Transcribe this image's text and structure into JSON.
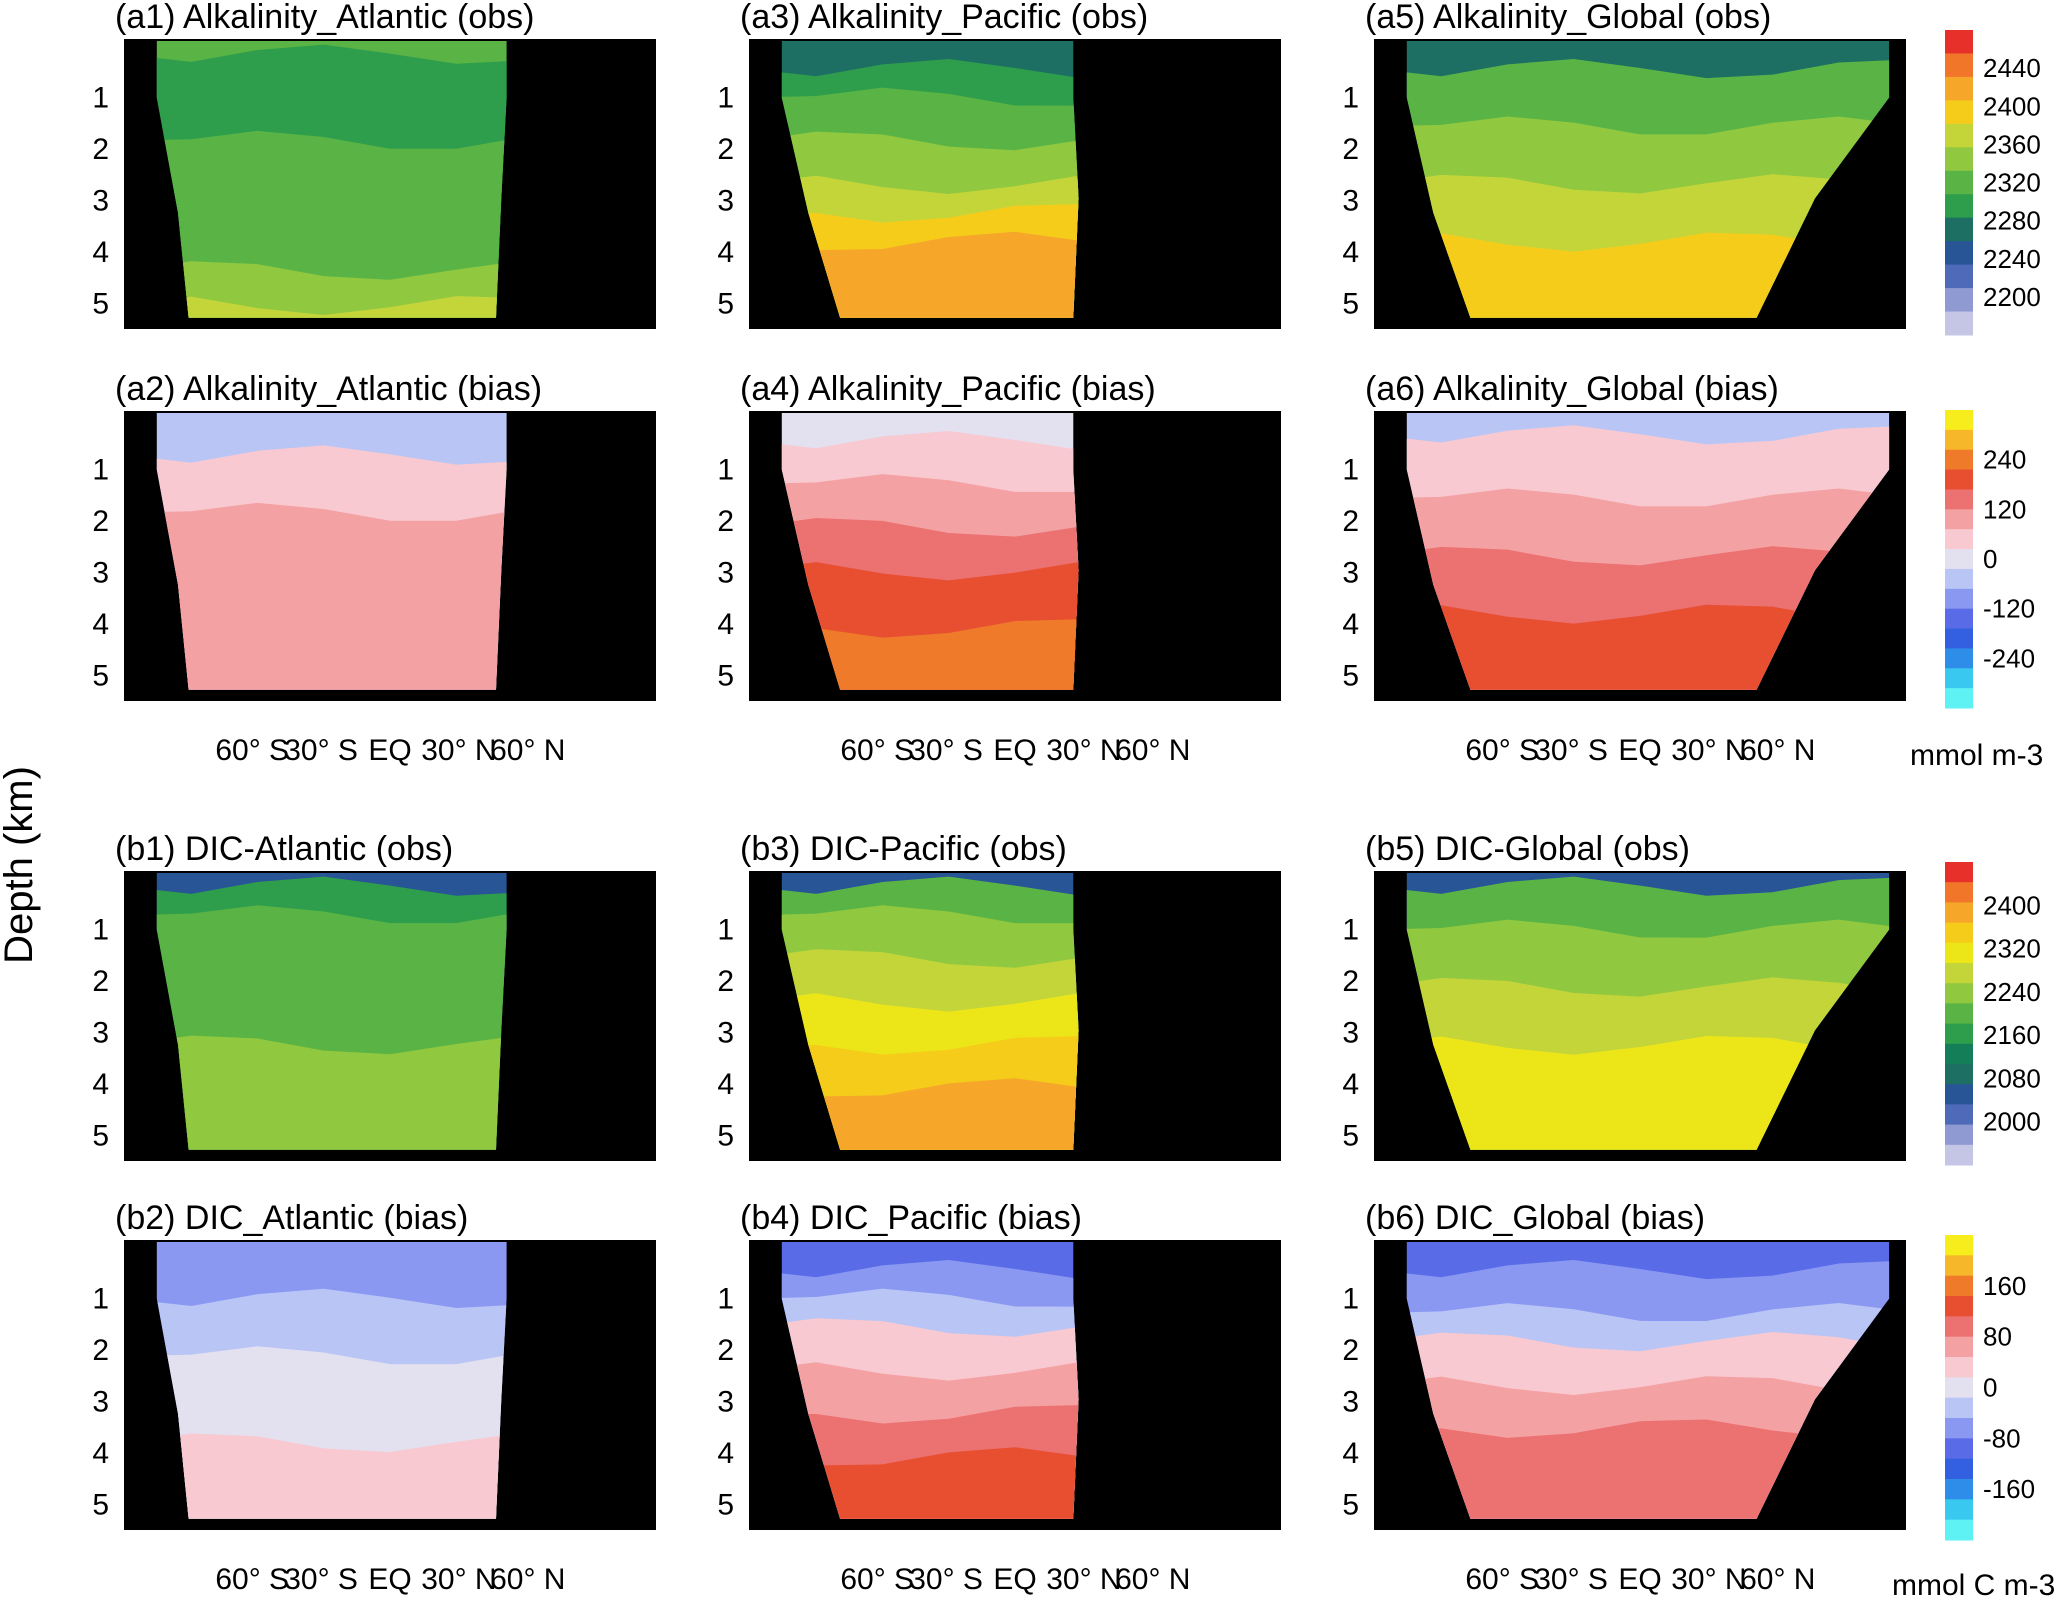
{
  "figure": {
    "ylabel": "Depth (km)",
    "depth_ticks": [
      "1",
      "2",
      "3",
      "4",
      "5"
    ],
    "lat_ticks": [
      "60° S",
      "30° S",
      "EQ",
      "30° N",
      "60° N"
    ]
  },
  "colorbars": {
    "alk_obs": {
      "ticks": [
        2440,
        2400,
        2360,
        2320,
        2280,
        2240,
        2200
      ],
      "colors": [
        "#e8302a",
        "#f2762a",
        "#f6a72a",
        "#f6cc1b",
        "#c4d53a",
        "#90c840",
        "#5ab445",
        "#2e9e4c",
        "#1d6f63",
        "#275596",
        "#4f6ab8",
        "#8f9ad2",
        "#c5c6e6"
      ]
    },
    "alk_bias": {
      "ticks": [
        240,
        120,
        0,
        -120,
        -240
      ],
      "colors": [
        "#f7ec1c",
        "#f6b72a",
        "#ee7a2a",
        "#e74f30",
        "#ec7171",
        "#f4a1a3",
        "#f8c9d1",
        "#e3e0ef",
        "#b9c5f5",
        "#8a98f2",
        "#5a6be8",
        "#3360e0",
        "#2d8de8",
        "#39c8ef",
        "#5ef2f4"
      ]
    },
    "dic_obs": {
      "ticks": [
        2400,
        2320,
        2240,
        2160,
        2080,
        2000
      ],
      "colors": [
        "#e8302a",
        "#f2762a",
        "#f6a72a",
        "#f6cc1b",
        "#ece619",
        "#c4d53a",
        "#90c840",
        "#5ab445",
        "#2e9e4c",
        "#137e57",
        "#1d6f63",
        "#275596",
        "#4f6ab8",
        "#8f9ad2",
        "#c5c6e6"
      ]
    },
    "dic_bias": {
      "ticks": [
        160,
        80,
        0,
        -80,
        -160
      ],
      "colors": [
        "#f7ec1c",
        "#f6b72a",
        "#ee7a2a",
        "#e74f30",
        "#ec7171",
        "#f4a1a3",
        "#f8c9d1",
        "#e3e0ef",
        "#b9c5f5",
        "#8a98f2",
        "#5a6be8",
        "#3360e0",
        "#2d8de8",
        "#39c8ef",
        "#5ef2f4"
      ]
    },
    "alk_unit": "mmol m-3",
    "dic_unit": "mmol C m-3"
  },
  "panels": [
    {
      "id": "a1",
      "title": "(a1) Alkalinity_Atlantic (obs)",
      "basin": "atlantic",
      "field": "alk_obs",
      "layers": [
        [
          0.0,
          "#5ab445"
        ],
        [
          0.05,
          "#2e9e4c"
        ],
        [
          0.35,
          "#5ab445"
        ],
        [
          0.8,
          "#90c840"
        ],
        [
          0.92,
          "#c4d53a"
        ]
      ]
    },
    {
      "id": "a3",
      "title": "(a3) Alkalinity_Pacific (obs)",
      "basin": "pacific",
      "field": "alk_obs",
      "layers": [
        [
          0.0,
          "#1d6f63"
        ],
        [
          0.1,
          "#2e9e4c"
        ],
        [
          0.2,
          "#5ab445"
        ],
        [
          0.35,
          "#90c840"
        ],
        [
          0.5,
          "#c4d53a"
        ],
        [
          0.6,
          "#f6cc1b"
        ],
        [
          0.7,
          "#f6a72a"
        ]
      ]
    },
    {
      "id": "a5",
      "title": "(a5) Alkalinity_Global (obs)",
      "basin": "global",
      "field": "alk_obs",
      "layers": [
        [
          0.0,
          "#1d6f63"
        ],
        [
          0.1,
          "#5ab445"
        ],
        [
          0.3,
          "#90c840"
        ],
        [
          0.5,
          "#c4d53a"
        ],
        [
          0.7,
          "#f6cc1b"
        ]
      ]
    },
    {
      "id": "a2",
      "title": "(a2) Alkalinity_Atlantic (bias)",
      "basin": "atlantic",
      "field": "alk_bias",
      "layers": [
        [
          0.0,
          "#b9c5f5"
        ],
        [
          0.15,
          "#f8c9d1"
        ],
        [
          0.35,
          "#f4a1a3"
        ]
      ]
    },
    {
      "id": "a4",
      "title": "(a4) Alkalinity_Pacific (bias)",
      "basin": "pacific",
      "field": "alk_bias",
      "layers": [
        [
          0.0,
          "#e3e0ef"
        ],
        [
          0.1,
          "#f8c9d1"
        ],
        [
          0.25,
          "#f4a1a3"
        ],
        [
          0.4,
          "#ec7171"
        ],
        [
          0.55,
          "#e74f30"
        ],
        [
          0.75,
          "#ee7a2a"
        ]
      ]
    },
    {
      "id": "a6",
      "title": "(a6) Alkalinity_Global (bias)",
      "basin": "global",
      "field": "alk_bias",
      "layers": [
        [
          0.0,
          "#b9c5f5"
        ],
        [
          0.08,
          "#f8c9d1"
        ],
        [
          0.3,
          "#f4a1a3"
        ],
        [
          0.5,
          "#ec7171"
        ],
        [
          0.7,
          "#e74f30"
        ]
      ]
    },
    {
      "id": "b1",
      "title": "(b1)  DIC-Atlantic (obs)",
      "basin": "atlantic",
      "field": "dic_obs",
      "layers": [
        [
          0.0,
          "#275596"
        ],
        [
          0.05,
          "#2e9e4c"
        ],
        [
          0.15,
          "#5ab445"
        ],
        [
          0.6,
          "#90c840"
        ]
      ]
    },
    {
      "id": "b3",
      "title": "(b3)  DIC-Pacific (obs)",
      "basin": "pacific",
      "field": "dic_obs",
      "layers": [
        [
          0.0,
          "#275596"
        ],
        [
          0.05,
          "#5ab445"
        ],
        [
          0.15,
          "#90c840"
        ],
        [
          0.3,
          "#c4d53a"
        ],
        [
          0.45,
          "#ece619"
        ],
        [
          0.6,
          "#f6cc1b"
        ],
        [
          0.75,
          "#f6a72a"
        ]
      ]
    },
    {
      "id": "b5",
      "title": "(b5)  DIC-Global (obs)",
      "basin": "global",
      "field": "dic_obs",
      "layers": [
        [
          0.0,
          "#275596"
        ],
        [
          0.05,
          "#5ab445"
        ],
        [
          0.2,
          "#90c840"
        ],
        [
          0.4,
          "#c4d53a"
        ],
        [
          0.6,
          "#ece619"
        ]
      ]
    },
    {
      "id": "b2",
      "title": "(b2) DIC_Atlantic (bias)",
      "basin": "atlantic",
      "field": "dic_bias",
      "layers": [
        [
          0.0,
          "#8a98f2"
        ],
        [
          0.2,
          "#b9c5f5"
        ],
        [
          0.4,
          "#e3e0ef"
        ],
        [
          0.7,
          "#f8c9d1"
        ]
      ]
    },
    {
      "id": "b4",
      "title": "(b4) DIC_Pacific (bias)",
      "basin": "pacific",
      "field": "dic_bias",
      "layers": [
        [
          0.0,
          "#5a6be8"
        ],
        [
          0.1,
          "#8a98f2"
        ],
        [
          0.2,
          "#b9c5f5"
        ],
        [
          0.3,
          "#f8c9d1"
        ],
        [
          0.45,
          "#f4a1a3"
        ],
        [
          0.6,
          "#ec7171"
        ],
        [
          0.75,
          "#e74f30"
        ]
      ]
    },
    {
      "id": "b6",
      "title": "(b6) DIC_Global (bias)",
      "basin": "global",
      "field": "dic_bias",
      "layers": [
        [
          0.0,
          "#5a6be8"
        ],
        [
          0.1,
          "#8a98f2"
        ],
        [
          0.25,
          "#b9c5f5"
        ],
        [
          0.35,
          "#f8c9d1"
        ],
        [
          0.5,
          "#f4a1a3"
        ],
        [
          0.65,
          "#ec7171"
        ]
      ]
    }
  ],
  "chart_data": [
    {
      "type": "heatmap",
      "title": "(a1) Alkalinity_Atlantic (obs)",
      "x": "latitude",
      "ylabel": "Depth (km)",
      "ylim": [
        5.5,
        0
      ],
      "colorbar_range": [
        2200,
        2440
      ],
      "unit": "mmol m-3"
    },
    {
      "type": "heatmap",
      "title": "(a3) Alkalinity_Pacific (obs)",
      "x": "latitude",
      "ylabel": "Depth (km)",
      "ylim": [
        5.5,
        0
      ],
      "colorbar_range": [
        2200,
        2440
      ],
      "unit": "mmol m-3"
    },
    {
      "type": "heatmap",
      "title": "(a5) Alkalinity_Global (obs)",
      "x": "latitude",
      "ylabel": "Depth (km)",
      "ylim": [
        5.5,
        0
      ],
      "colorbar_range": [
        2200,
        2440
      ],
      "unit": "mmol m-3"
    },
    {
      "type": "heatmap",
      "title": "(a2) Alkalinity_Atlantic (bias)",
      "x": "latitude",
      "ylabel": "Depth (km)",
      "ylim": [
        5.5,
        0
      ],
      "colorbar_range": [
        -240,
        240
      ],
      "unit": "mmol m-3"
    },
    {
      "type": "heatmap",
      "title": "(a4) Alkalinity_Pacific (bias)",
      "x": "latitude",
      "ylabel": "Depth (km)",
      "ylim": [
        5.5,
        0
      ],
      "colorbar_range": [
        -240,
        240
      ],
      "unit": "mmol m-3"
    },
    {
      "type": "heatmap",
      "title": "(a6) Alkalinity_Global (bias)",
      "x": "latitude",
      "ylabel": "Depth (km)",
      "ylim": [
        5.5,
        0
      ],
      "colorbar_range": [
        -240,
        240
      ],
      "unit": "mmol m-3"
    },
    {
      "type": "heatmap",
      "title": "(b1)  DIC-Atlantic (obs)",
      "x": "latitude",
      "ylabel": "Depth (km)",
      "ylim": [
        5.5,
        0
      ],
      "colorbar_range": [
        2000,
        2400
      ],
      "unit": "mmol C m-3"
    },
    {
      "type": "heatmap",
      "title": "(b3)  DIC-Pacific (obs)",
      "x": "latitude",
      "ylabel": "Depth (km)",
      "ylim": [
        5.5,
        0
      ],
      "colorbar_range": [
        2000,
        2400
      ],
      "unit": "mmol C m-3"
    },
    {
      "type": "heatmap",
      "title": "(b5)  DIC-Global (obs)",
      "x": "latitude",
      "ylabel": "Depth (km)",
      "ylim": [
        5.5,
        0
      ],
      "colorbar_range": [
        2000,
        2400
      ],
      "unit": "mmol C m-3"
    },
    {
      "type": "heatmap",
      "title": "(b2) DIC_Atlantic (bias)",
      "x": "latitude",
      "ylabel": "Depth (km)",
      "ylim": [
        5.5,
        0
      ],
      "colorbar_range": [
        -160,
        160
      ],
      "unit": "mmol C m-3"
    },
    {
      "type": "heatmap",
      "title": "(b4) DIC_Pacific (bias)",
      "x": "latitude",
      "ylabel": "Depth (km)",
      "ylim": [
        5.5,
        0
      ],
      "colorbar_range": [
        -160,
        160
      ],
      "unit": "mmol C m-3"
    },
    {
      "type": "heatmap",
      "title": "(b6) DIC_Global (bias)",
      "x": "latitude",
      "ylabel": "Depth (km)",
      "ylim": [
        5.5,
        0
      ],
      "colorbar_range": [
        -160,
        160
      ],
      "unit": "mmol C m-3"
    }
  ]
}
